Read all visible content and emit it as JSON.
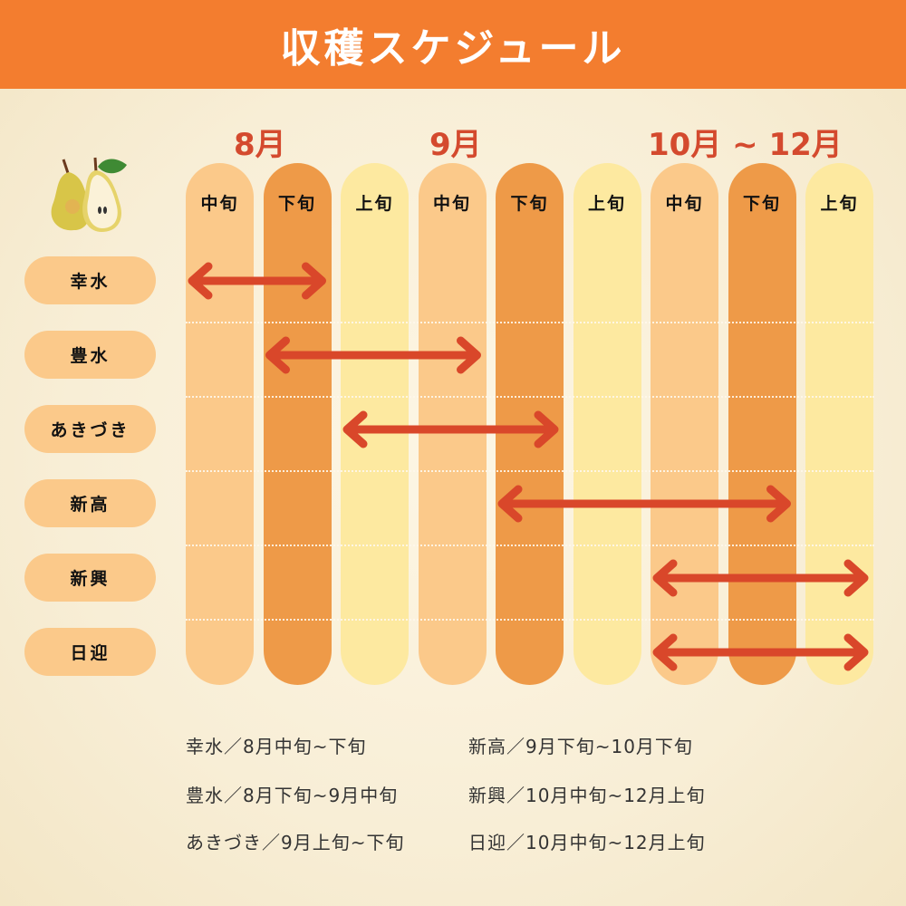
{
  "title": "収穫スケジュール",
  "months": [
    "8月",
    "9月",
    "10月 ~ 12月"
  ],
  "periods": [
    {
      "label": "中旬",
      "color": "#fbc98a"
    },
    {
      "label": "下旬",
      "color": "#ee9a48"
    },
    {
      "label": "上旬",
      "color": "#fde9a0"
    },
    {
      "label": "中旬",
      "color": "#fbc98a"
    },
    {
      "label": "下旬",
      "color": "#ee9a48"
    },
    {
      "label": "上旬",
      "color": "#fde9a0"
    },
    {
      "label": "中旬",
      "color": "#fbc98a"
    },
    {
      "label": "下旬",
      "color": "#ee9a48"
    },
    {
      "label": "上旬",
      "color": "#fde9a0"
    }
  ],
  "varieties": [
    {
      "name": "幸水",
      "start": 0,
      "end": 1
    },
    {
      "name": "豊水",
      "start": 1,
      "end": 3
    },
    {
      "name": "あきづき",
      "start": 2,
      "end": 4
    },
    {
      "name": "新高",
      "start": 4,
      "end": 7
    },
    {
      "name": "新興",
      "start": 6,
      "end": 8
    },
    {
      "name": "日迎",
      "start": 6,
      "end": 8
    }
  ],
  "legend": [
    "幸水／8月中旬~下旬",
    "豊水／8月下旬~9月中旬",
    "あきづき／9月上旬~下旬",
    "新高／9月下旬~10月下旬",
    "新興／10月中旬~12月上旬",
    "日迎／10月中旬~12月上旬"
  ],
  "colors": {
    "header": "#f37d2f",
    "arrow": "#d9472a",
    "month": "#d44a2e"
  },
  "icon": "pear-icon"
}
